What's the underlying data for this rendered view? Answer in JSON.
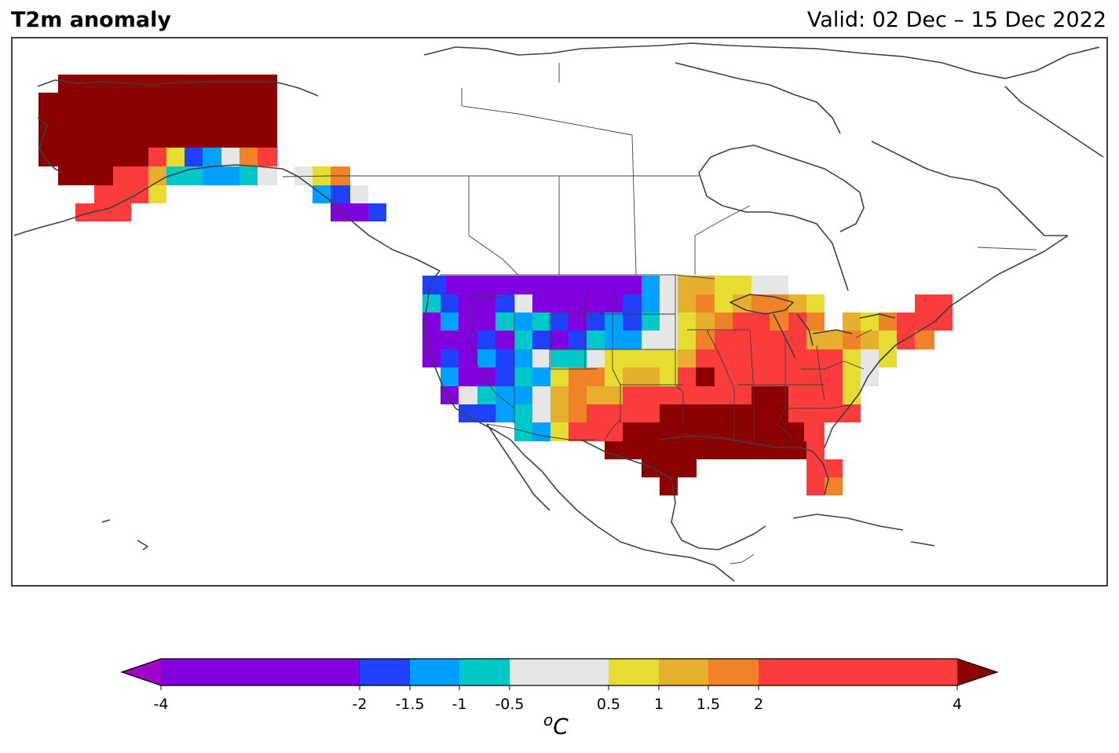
{
  "header": {
    "title": "T2m anomaly",
    "valid": "Valid: 02 Dec – 15 Dec 2022"
  },
  "colorbar": {
    "ticks": [
      "-4",
      "-2",
      "-1.5",
      "-1",
      "-0.5",
      "0.5",
      "1",
      "1.5",
      "2",
      "4"
    ],
    "unit_sup": "o",
    "unit": "C",
    "bins": [
      {
        "from": -4,
        "to": -2,
        "color": "#8000e0"
      },
      {
        "from": -2,
        "to": -1.5,
        "color": "#2040ff"
      },
      {
        "from": -1.5,
        "to": -1,
        "color": "#00a0ff"
      },
      {
        "from": -1,
        "to": -0.5,
        "color": "#00c8c8"
      },
      {
        "from": -0.5,
        "to": 0.5,
        "color": "#e6e6e6"
      },
      {
        "from": 0.5,
        "to": 1,
        "color": "#e6dc32"
      },
      {
        "from": 1,
        "to": 1.5,
        "color": "#e6af2d"
      },
      {
        "from": 1.5,
        "to": 2,
        "color": "#f08228"
      },
      {
        "from": 2,
        "to": 4,
        "color": "#fa3c3c"
      }
    ],
    "under_color": "#a000c8",
    "over_color": "#8b0000"
  },
  "colors": {
    "coastline": "#404040",
    "frame": "#000000",
    "cold_extreme": "#8000e0",
    "warm_extreme": "#8b0000"
  }
}
